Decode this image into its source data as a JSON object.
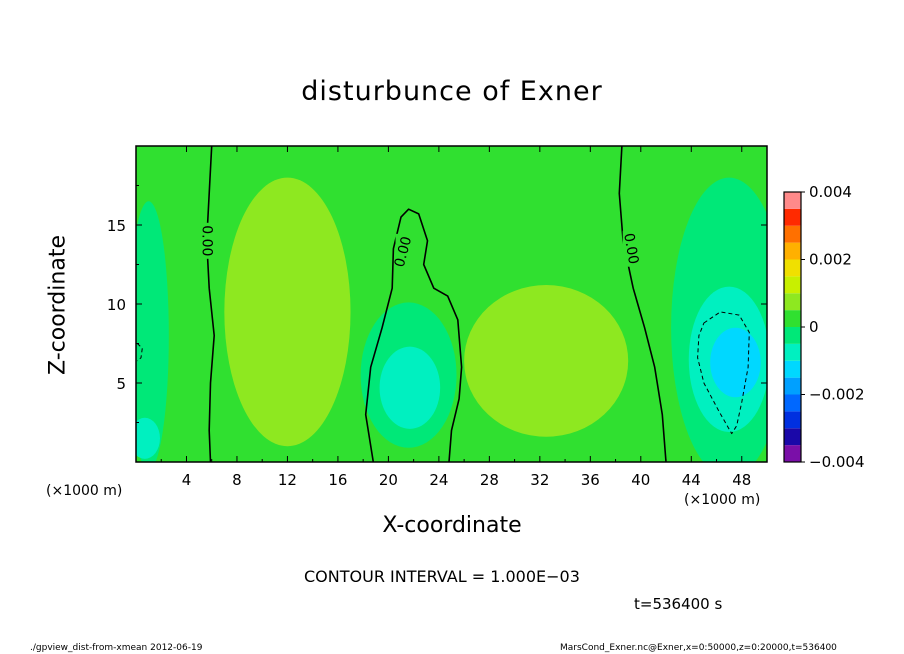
{
  "chart_data": {
    "type": "heatmap",
    "title": "disturbunce of Exner",
    "xlabel": "X-coordinate",
    "ylabel": "Z-coordinate",
    "x_unit_left": "(×1000 m)",
    "x_unit_right": "(×1000 m)",
    "xlim": [
      0,
      50
    ],
    "ylim": [
      0,
      20
    ],
    "xticks": [
      4,
      8,
      12,
      16,
      20,
      24,
      28,
      32,
      36,
      40,
      44,
      48
    ],
    "yticks": [
      5,
      10,
      15
    ],
    "colorbar": {
      "range": [
        -0.004,
        0.004
      ],
      "tick_values": [
        0.004,
        0.002,
        0,
        -0.002,
        -0.004
      ],
      "tick_labels": [
        "0.004",
        "0.002",
        "0",
        "−0.002",
        "−0.004"
      ],
      "levels": [
        {
          "from": -0.004,
          "to": -0.0035,
          "color": "#7a0fa8"
        },
        {
          "from": -0.0035,
          "to": -0.003,
          "color": "#1a08a8"
        },
        {
          "from": -0.003,
          "to": -0.0025,
          "color": "#0030e0"
        },
        {
          "from": -0.0025,
          "to": -0.002,
          "color": "#0068ff"
        },
        {
          "from": -0.002,
          "to": -0.0015,
          "color": "#00a0ff"
        },
        {
          "from": -0.0015,
          "to": -0.001,
          "color": "#00d8ff"
        },
        {
          "from": -0.001,
          "to": -0.0005,
          "color": "#00f0c0"
        },
        {
          "from": -0.0005,
          "to": 0,
          "color": "#00e878"
        },
        {
          "from": 0,
          "to": 0.0005,
          "color": "#30e030"
        },
        {
          "from": 0.0005,
          "to": 0.001,
          "color": "#8ee820"
        },
        {
          "from": 0.001,
          "to": 0.0015,
          "color": "#c8f000"
        },
        {
          "from": 0.0015,
          "to": 0.002,
          "color": "#f0e000"
        },
        {
          "from": 0.002,
          "to": 0.0025,
          "color": "#ffb000"
        },
        {
          "from": 0.0025,
          "to": 0.003,
          "color": "#ff7000"
        },
        {
          "from": 0.003,
          "to": 0.0035,
          "color": "#ff2a00"
        },
        {
          "from": 0.0035,
          "to": 0.004,
          "color": "#ff8a8a"
        }
      ]
    },
    "contour_labels": [
      "0.00",
      "0.00",
      "0.00"
    ],
    "contour_lines": [
      {
        "style": "solid",
        "points": [
          [
            6,
            20
          ],
          [
            5.8,
            17
          ],
          [
            5.6,
            14
          ],
          [
            5.8,
            11
          ],
          [
            6.2,
            8
          ],
          [
            5.9,
            5
          ],
          [
            5.8,
            2
          ],
          [
            5.9,
            0
          ]
        ]
      },
      {
        "style": "solid",
        "points": [
          [
            18.8,
            0
          ],
          [
            18.2,
            3
          ],
          [
            18.6,
            6
          ],
          [
            19.5,
            8.5
          ],
          [
            20.3,
            11
          ],
          [
            20.4,
            13.5
          ],
          [
            21,
            15.5
          ],
          [
            21.6,
            16
          ],
          [
            22.4,
            15.7
          ],
          [
            23.1,
            14
          ],
          [
            22.8,
            12.5
          ],
          [
            23.6,
            11
          ],
          [
            24.7,
            10.5
          ],
          [
            25.5,
            9
          ],
          [
            25.8,
            6
          ],
          [
            25.6,
            4
          ],
          [
            25,
            2
          ],
          [
            24.8,
            0
          ]
        ]
      },
      {
        "style": "solid",
        "points": [
          [
            38.5,
            20
          ],
          [
            38.3,
            17
          ],
          [
            38.6,
            14
          ],
          [
            39.4,
            11
          ],
          [
            40.3,
            8.5
          ],
          [
            41.1,
            6
          ],
          [
            41.7,
            3
          ],
          [
            42,
            0
          ]
        ]
      },
      {
        "style": "dashed",
        "points": [
          [
            45,
            8.8
          ],
          [
            46.3,
            9.5
          ],
          [
            47.8,
            9.3
          ],
          [
            48.6,
            8.2
          ],
          [
            48.5,
            6
          ],
          [
            48,
            3.8
          ],
          [
            47.6,
            2.3
          ],
          [
            47.2,
            1.8
          ],
          [
            46.2,
            3.2
          ],
          [
            45,
            5
          ],
          [
            44.5,
            6.6
          ],
          [
            44.6,
            8
          ]
        ]
      },
      {
        "style": "dashed",
        "points": [
          [
            0.1,
            7.5
          ],
          [
            0.5,
            7.2
          ],
          [
            0.4,
            6.6
          ],
          [
            0.1,
            6.4
          ]
        ]
      }
    ],
    "filled_regions": [
      {
        "value": 0.0002,
        "shape": "rect",
        "x": [
          0,
          50
        ],
        "y": [
          0,
          20
        ]
      },
      {
        "value": -0.0003,
        "shape": "ellipse",
        "center": [
          1,
          8
        ],
        "radii": [
          1.6,
          8.5
        ]
      },
      {
        "value": -0.0008,
        "shape": "ellipse",
        "center": [
          0.7,
          1.5
        ],
        "radii": [
          1.2,
          1.3
        ]
      },
      {
        "value": 0.0007,
        "shape": "ellipse",
        "center": [
          12,
          9.5
        ],
        "radii": [
          5,
          8.5
        ]
      },
      {
        "value": 0.0009,
        "shape": "ellipse",
        "center": [
          12.4,
          6.6
        ],
        "radii": [
          2.1,
          2.3
        ]
      },
      {
        "value": -0.0002,
        "shape": "ellipse",
        "center": [
          21.6,
          5.5
        ],
        "radii": [
          3.8,
          4.6
        ]
      },
      {
        "value": -0.0006,
        "shape": "ellipse",
        "center": [
          21.7,
          4.7
        ],
        "radii": [
          2.4,
          2.6
        ]
      },
      {
        "value": 0.0006,
        "shape": "ellipse",
        "center": [
          32.5,
          6.4
        ],
        "radii": [
          6.5,
          4.8
        ]
      },
      {
        "value": -0.0004,
        "shape": "ellipse",
        "center": [
          47,
          8.5
        ],
        "radii": [
          4.6,
          9.5
        ]
      },
      {
        "value": -0.0008,
        "shape": "ellipse",
        "center": [
          47,
          6.5
        ],
        "radii": [
          3.2,
          4.6
        ]
      },
      {
        "value": -0.0013,
        "shape": "ellipse",
        "center": [
          47.5,
          6.3
        ],
        "radii": [
          2,
          2.2
        ]
      }
    ]
  },
  "annotations": {
    "contour_interval": "CONTOUR INTERVAL = 1.000E−03",
    "time": "t=536400 s",
    "footer_left": "./gpview_dist-from-xmean  2012-06-19",
    "footer_right": "MarsCond_Exner.nc@Exner,x=0:50000,z=0:20000,t=536400"
  }
}
